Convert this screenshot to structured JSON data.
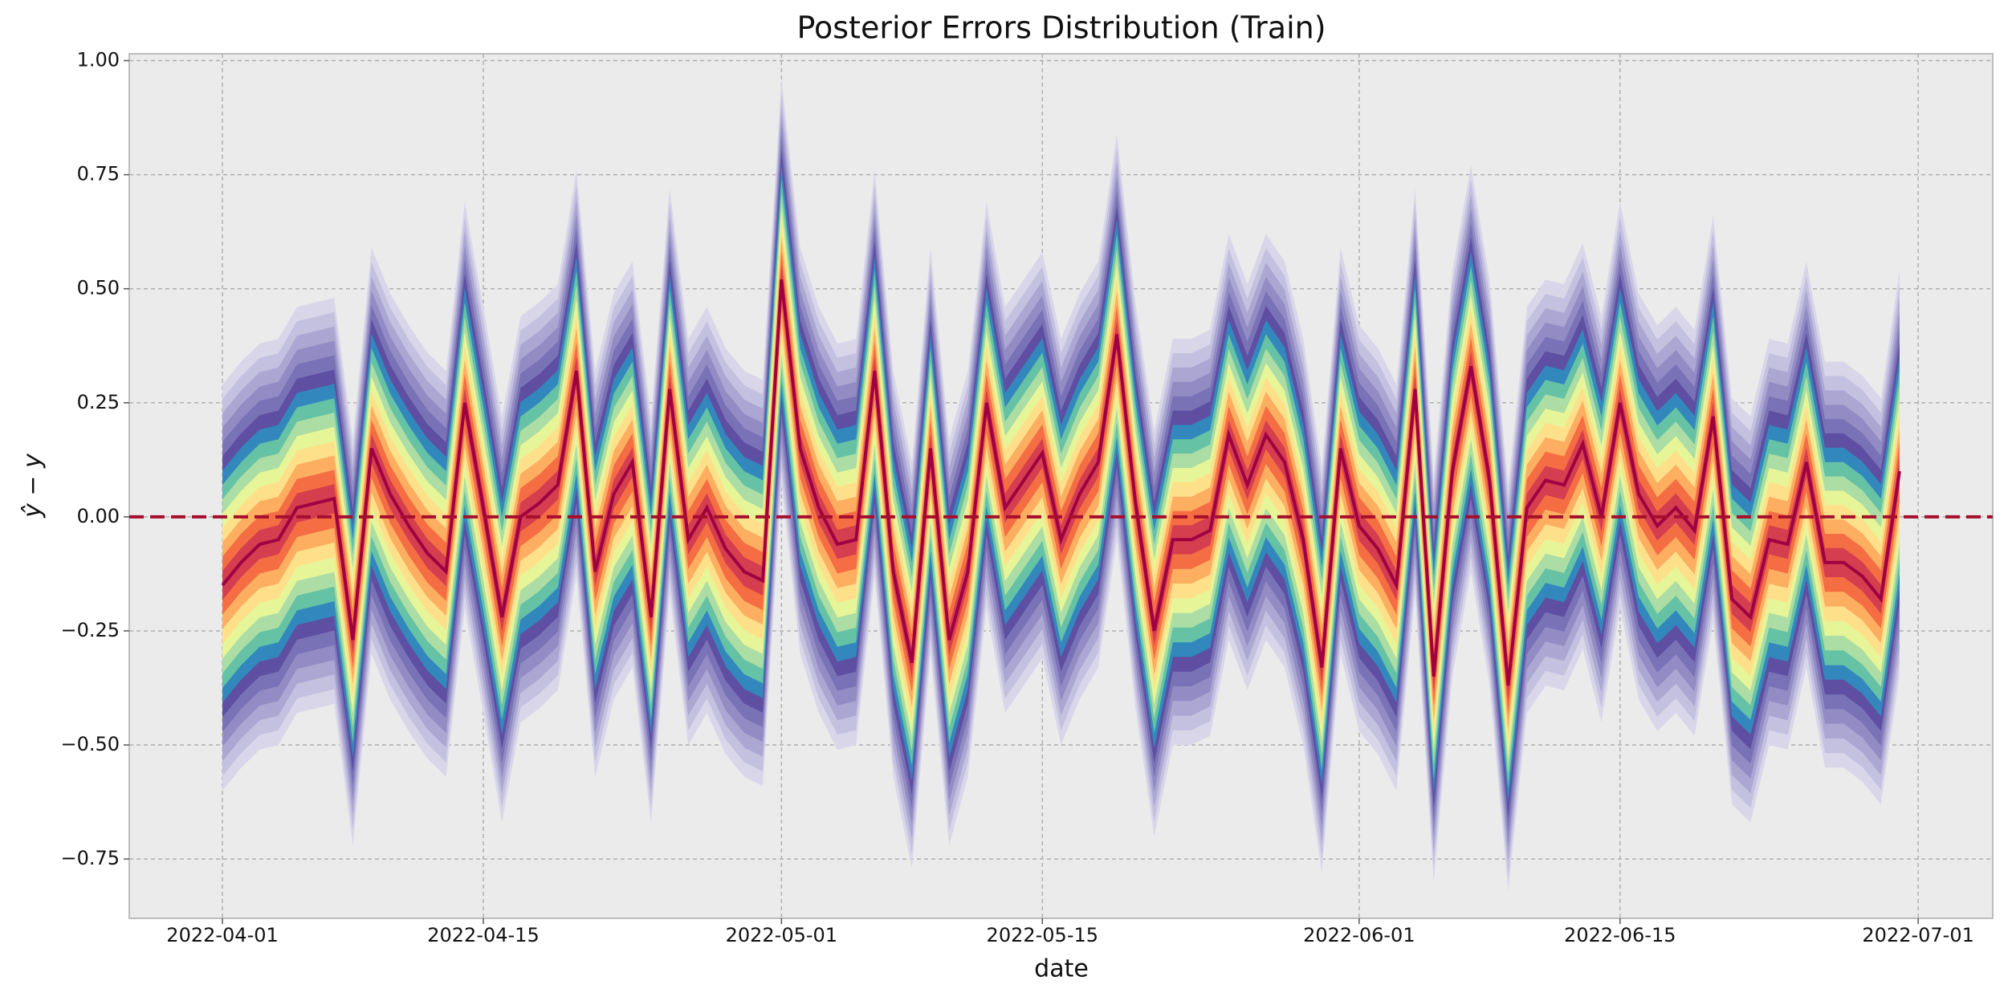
{
  "chart_data": {
    "type": "fan",
    "title": "Posterior Errors Distribution (Train)",
    "xlabel": "date",
    "ylabel": "ŷ − y",
    "x": [
      "2022-04-01",
      "2022-04-02",
      "2022-04-03",
      "2022-04-04",
      "2022-04-05",
      "2022-04-06",
      "2022-04-07",
      "2022-04-08",
      "2022-04-09",
      "2022-04-10",
      "2022-04-11",
      "2022-04-12",
      "2022-04-13",
      "2022-04-14",
      "2022-04-15",
      "2022-04-16",
      "2022-04-17",
      "2022-04-18",
      "2022-04-19",
      "2022-04-20",
      "2022-04-21",
      "2022-04-22",
      "2022-04-23",
      "2022-04-24",
      "2022-04-25",
      "2022-04-26",
      "2022-04-27",
      "2022-04-28",
      "2022-04-29",
      "2022-04-30",
      "2022-05-01",
      "2022-05-02",
      "2022-05-03",
      "2022-05-04",
      "2022-05-05",
      "2022-05-06",
      "2022-05-07",
      "2022-05-08",
      "2022-05-09",
      "2022-05-10",
      "2022-05-11",
      "2022-05-12",
      "2022-05-13",
      "2022-05-14",
      "2022-05-15",
      "2022-05-16",
      "2022-05-17",
      "2022-05-18",
      "2022-05-19",
      "2022-05-20",
      "2022-05-21",
      "2022-05-22",
      "2022-05-23",
      "2022-05-24",
      "2022-05-25",
      "2022-05-26",
      "2022-05-27",
      "2022-05-28",
      "2022-05-29",
      "2022-05-30",
      "2022-05-31",
      "2022-06-01",
      "2022-06-02",
      "2022-06-03",
      "2022-06-04",
      "2022-06-05",
      "2022-06-06",
      "2022-06-07",
      "2022-06-08",
      "2022-06-09",
      "2022-06-10",
      "2022-06-11",
      "2022-06-12",
      "2022-06-13",
      "2022-06-14",
      "2022-06-15",
      "2022-06-16",
      "2022-06-17",
      "2022-06-18",
      "2022-06-19",
      "2022-06-20",
      "2022-06-21",
      "2022-06-22",
      "2022-06-23",
      "2022-06-24",
      "2022-06-25",
      "2022-06-26",
      "2022-06-27",
      "2022-06-28",
      "2022-06-29",
      "2022-06-30"
    ],
    "values": [
      -0.15,
      -0.1,
      -0.06,
      -0.05,
      0.02,
      0.03,
      0.04,
      -0.27,
      0.15,
      0.05,
      -0.02,
      -0.08,
      -0.12,
      0.25,
      0.02,
      -0.22,
      0.0,
      0.03,
      0.07,
      0.32,
      -0.12,
      0.05,
      0.12,
      -0.22,
      0.28,
      -0.05,
      0.02,
      -0.07,
      -0.12,
      -0.14,
      0.52,
      0.15,
      0.02,
      -0.06,
      -0.05,
      0.32,
      -0.12,
      -0.32,
      0.15,
      -0.27,
      -0.12,
      0.25,
      0.02,
      0.08,
      0.14,
      -0.05,
      0.05,
      0.12,
      0.4,
      0.03,
      -0.25,
      -0.05,
      -0.05,
      -0.03,
      0.18,
      0.07,
      0.18,
      0.12,
      -0.05,
      -0.33,
      0.15,
      -0.02,
      -0.07,
      -0.15,
      0.28,
      -0.35,
      0.1,
      0.33,
      0.08,
      -0.37,
      0.02,
      0.08,
      0.07,
      0.16,
      0.0,
      0.25,
      0.05,
      -0.02,
      0.02,
      -0.03,
      0.22,
      -0.18,
      -0.22,
      -0.05,
      -0.06,
      0.12,
      -0.1,
      -0.1,
      -0.13,
      -0.18,
      0.1
    ],
    "upper": [
      0.29,
      0.34,
      0.38,
      0.39,
      0.46,
      0.47,
      0.48,
      0.17,
      0.59,
      0.49,
      0.42,
      0.36,
      0.32,
      0.69,
      0.46,
      0.22,
      0.44,
      0.47,
      0.51,
      0.76,
      0.32,
      0.49,
      0.56,
      0.22,
      0.72,
      0.39,
      0.46,
      0.37,
      0.32,
      0.3,
      0.96,
      0.59,
      0.46,
      0.38,
      0.39,
      0.76,
      0.32,
      0.12,
      0.59,
      0.17,
      0.32,
      0.69,
      0.46,
      0.52,
      0.58,
      0.39,
      0.49,
      0.56,
      0.84,
      0.47,
      0.19,
      0.39,
      0.39,
      0.41,
      0.62,
      0.51,
      0.62,
      0.56,
      0.39,
      0.11,
      0.59,
      0.42,
      0.37,
      0.29,
      0.72,
      0.09,
      0.54,
      0.77,
      0.52,
      0.07,
      0.46,
      0.52,
      0.51,
      0.6,
      0.44,
      0.69,
      0.49,
      0.42,
      0.46,
      0.41,
      0.66,
      0.26,
      0.22,
      0.39,
      0.38,
      0.56,
      0.34,
      0.34,
      0.31,
      0.26,
      0.54
    ],
    "lower": [
      -0.6,
      -0.55,
      -0.51,
      -0.5,
      -0.43,
      -0.42,
      -0.41,
      -0.72,
      -0.3,
      -0.4,
      -0.47,
      -0.53,
      -0.57,
      -0.2,
      -0.43,
      -0.67,
      -0.45,
      -0.42,
      -0.38,
      -0.13,
      -0.57,
      -0.4,
      -0.33,
      -0.67,
      -0.17,
      -0.5,
      -0.43,
      -0.52,
      -0.57,
      -0.59,
      0.07,
      -0.3,
      -0.43,
      -0.51,
      -0.5,
      -0.13,
      -0.57,
      -0.77,
      -0.3,
      -0.72,
      -0.57,
      -0.2,
      -0.43,
      -0.37,
      -0.31,
      -0.5,
      -0.4,
      -0.33,
      -0.05,
      -0.42,
      -0.7,
      -0.5,
      -0.5,
      -0.48,
      -0.27,
      -0.38,
      -0.27,
      -0.33,
      -0.5,
      -0.78,
      -0.3,
      -0.47,
      -0.52,
      -0.6,
      -0.17,
      -0.8,
      -0.35,
      -0.12,
      -0.37,
      -0.82,
      -0.43,
      -0.37,
      -0.38,
      -0.29,
      -0.45,
      -0.2,
      -0.4,
      -0.47,
      -0.43,
      -0.48,
      -0.23,
      -0.63,
      -0.67,
      -0.5,
      -0.51,
      -0.33,
      -0.55,
      -0.55,
      -0.58,
      -0.63,
      -0.35
    ],
    "color": "#9e0142",
    "colormap": [
      "#d9d6ea",
      "#c4c0df",
      "#aca6d2",
      "#938cc4",
      "#7a72b6",
      "#5e4fa2",
      "#3288bd",
      "#66c2a5",
      "#abdda4",
      "#e6f598",
      "#fee08b",
      "#fdae61",
      "#f46d43",
      "#d53e4f"
    ],
    "hline": 0,
    "hline_color": "#a50f2d",
    "xlim": [
      "2022-03-27",
      "2022-07-05"
    ],
    "xticks": [
      "2022-04-01",
      "2022-04-15",
      "2022-05-01",
      "2022-05-15",
      "2022-06-01",
      "2022-06-15",
      "2022-07-01"
    ],
    "ylim": [
      -0.88,
      1.015
    ],
    "yticks": [
      {
        "value": -0.75,
        "label": "−0.75"
      },
      {
        "value": -0.5,
        "label": "−0.50"
      },
      {
        "value": -0.25,
        "label": "−0.25"
      },
      {
        "value": 0,
        "label": "0.00"
      },
      {
        "value": 0.25,
        "label": "0.25"
      },
      {
        "value": 0.5,
        "label": "0.50"
      },
      {
        "value": 0.75,
        "label": "0.75"
      },
      {
        "value": 1,
        "label": "1.00"
      }
    ],
    "grid": true
  }
}
